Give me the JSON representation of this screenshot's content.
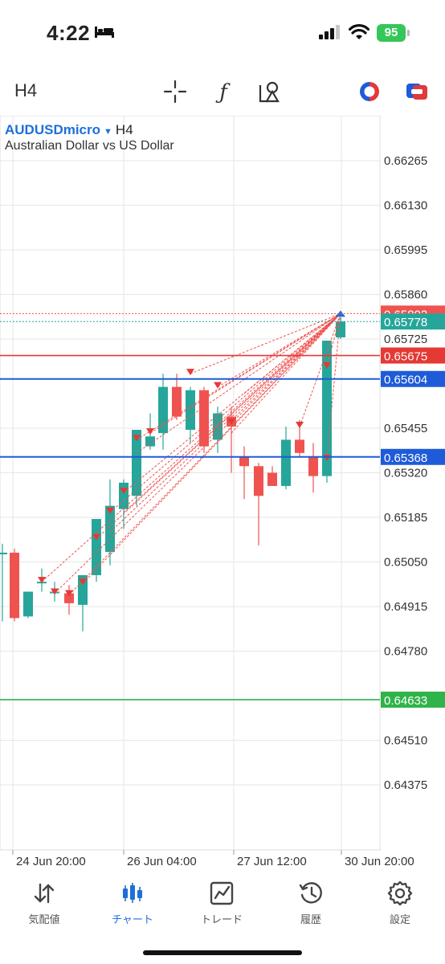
{
  "status": {
    "time": "4:22",
    "battery": "95"
  },
  "toolbar": {
    "timeframe": "H4"
  },
  "chart": {
    "symbol": "AUDUSDmicro",
    "timeframe": "H4",
    "description": "Australian Dollar vs US Dollar",
    "price_labels": [
      "0.66265",
      "0.66130",
      "0.65995",
      "0.65860",
      "0.65725",
      "0.65455",
      "0.65320",
      "0.65185",
      "0.65050",
      "0.64915",
      "0.64780",
      "0.64510",
      "0.64375"
    ],
    "time_labels": [
      "24 Jun 20:00",
      "26 Jun 04:00",
      "27 Jun 12:00",
      "30 Jun 20:00"
    ],
    "level_labels": {
      "ask": "0.65802",
      "bid": "0.65778",
      "red_line": "0.65675",
      "blue_line_1": "0.65604",
      "blue_line_2": "0.65368",
      "green_line": "0.64633"
    },
    "colors": {
      "up": "#26a69a",
      "down": "#ef5350",
      "blue": "#1e5bd8",
      "green": "#2fb34a",
      "grid": "#e6e6e6"
    }
  },
  "tabs": [
    {
      "label": "気配値",
      "icon": "quotes-arrows-icon"
    },
    {
      "label": "チャート",
      "icon": "candlestick-chart-icon"
    },
    {
      "label": "トレード",
      "icon": "trade-chart-icon"
    },
    {
      "label": "履歴",
      "icon": "history-clock-icon"
    },
    {
      "label": "設定",
      "icon": "settings-gear-icon"
    }
  ]
}
